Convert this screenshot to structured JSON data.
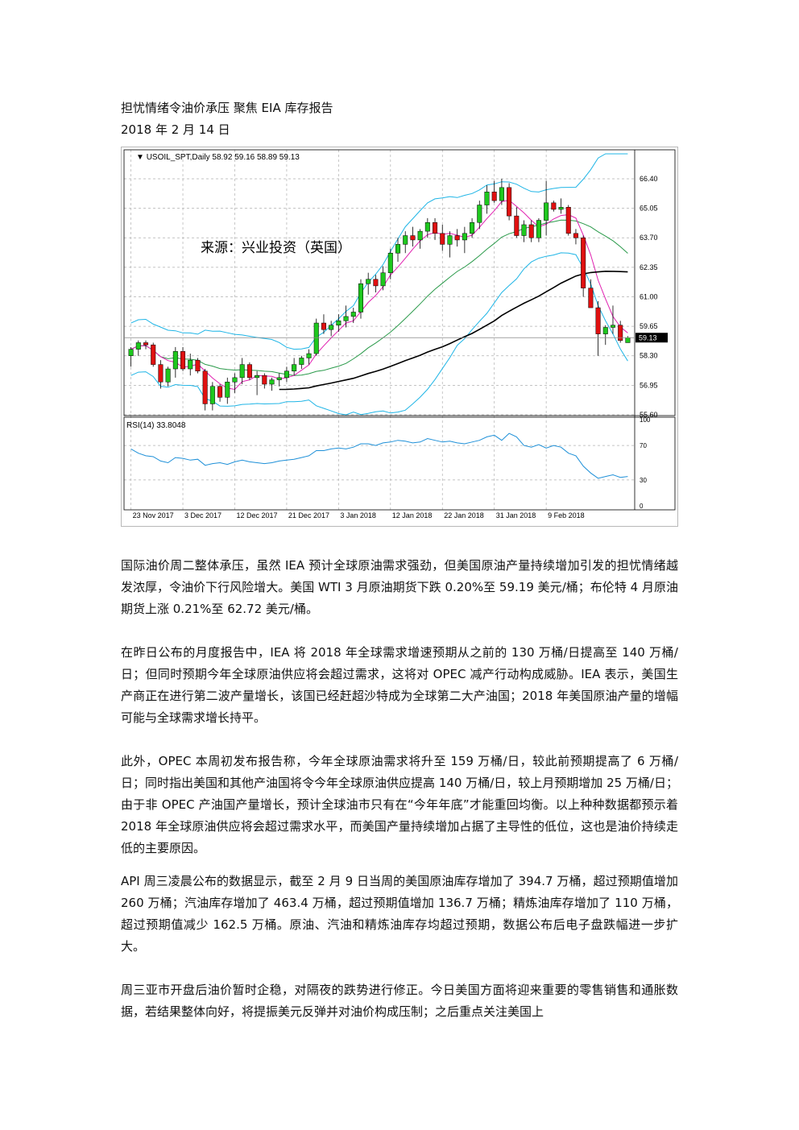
{
  "header": {
    "title": "担忧情绪令油价承压 聚焦 EIA 库存报告",
    "date": "2018 年 2 月 14 日"
  },
  "chart_data": {
    "type": "candlestick",
    "symbol_label": "USOIL_SPT,Daily",
    "ohlc_label": "58.92 59.16 58.89 59.13",
    "watermark": "来源：兴业投资（英国）",
    "price_ticks": [
      "66.40",
      "65.05",
      "63.70",
      "62.35",
      "61.00",
      "59.65",
      "58.30",
      "56.95",
      "55.60"
    ],
    "price_tick_values": [
      66.4,
      65.05,
      63.7,
      62.35,
      61.0,
      59.65,
      58.3,
      56.95,
      55.6
    ],
    "ylim": [
      55.6,
      67.1
    ],
    "last_price": "59.13",
    "last_price_value": 59.13,
    "date_labels": [
      "23 Nov 2017",
      "3 Dec 2017",
      "12 Dec 2017",
      "21 Dec 2017",
      "3 Jan 2018",
      "12 Jan 2018",
      "22 Jan 2018",
      "31 Jan 2018",
      "9 Feb 2018"
    ],
    "date_label_index": [
      0,
      7,
      14,
      21,
      28,
      35,
      42,
      49,
      56
    ],
    "candles": [
      [
        58.3,
        58.7,
        57.8,
        58.6
      ],
      [
        58.6,
        59.0,
        58.3,
        58.9
      ],
      [
        58.9,
        59.0,
        58.6,
        58.8
      ],
      [
        58.8,
        58.9,
        57.8,
        57.9
      ],
      [
        57.9,
        58.1,
        56.8,
        57.1
      ],
      [
        57.1,
        57.8,
        56.9,
        57.7
      ],
      [
        57.7,
        58.7,
        57.3,
        58.5
      ],
      [
        58.5,
        58.7,
        57.6,
        57.7
      ],
      [
        57.7,
        58.4,
        57.4,
        58.1
      ],
      [
        58.1,
        58.2,
        57.5,
        57.6
      ],
      [
        57.6,
        57.7,
        55.8,
        56.1
      ],
      [
        56.1,
        57.1,
        55.8,
        56.9
      ],
      [
        56.9,
        57.0,
        56.2,
        56.4
      ],
      [
        56.4,
        57.3,
        56.1,
        57.1
      ],
      [
        57.1,
        57.5,
        56.6,
        57.3
      ],
      [
        57.3,
        58.2,
        57.0,
        57.9
      ],
      [
        57.9,
        58.0,
        57.2,
        57.3
      ],
      [
        57.3,
        57.6,
        56.5,
        57.4
      ],
      [
        57.4,
        57.5,
        56.8,
        57.0
      ],
      [
        57.0,
        57.3,
        56.7,
        57.2
      ],
      [
        57.2,
        57.5,
        56.9,
        57.3
      ],
      [
        57.3,
        57.8,
        57.1,
        57.6
      ],
      [
        57.6,
        58.2,
        57.4,
        57.9
      ],
      [
        57.9,
        58.3,
        57.7,
        58.2
      ],
      [
        58.2,
        58.6,
        57.9,
        58.4
      ],
      [
        58.4,
        60.0,
        58.3,
        59.8
      ],
      [
        59.8,
        60.2,
        59.3,
        59.5
      ],
      [
        59.5,
        59.9,
        59.2,
        59.7
      ],
      [
        59.7,
        60.2,
        59.4,
        59.9
      ],
      [
        59.9,
        60.6,
        59.6,
        60.1
      ],
      [
        60.1,
        60.5,
        59.8,
        60.3
      ],
      [
        60.3,
        61.8,
        60.0,
        61.6
      ],
      [
        61.6,
        62.1,
        61.1,
        61.8
      ],
      [
        61.8,
        62.0,
        61.2,
        61.5
      ],
      [
        61.5,
        62.4,
        61.3,
        62.1
      ],
      [
        62.1,
        63.2,
        61.8,
        63.0
      ],
      [
        63.0,
        63.7,
        62.6,
        63.4
      ],
      [
        63.4,
        64.0,
        63.0,
        63.8
      ],
      [
        63.8,
        64.2,
        63.3,
        63.6
      ],
      [
        63.6,
        64.1,
        63.2,
        64.0
      ],
      [
        64.0,
        64.6,
        63.7,
        64.4
      ],
      [
        64.4,
        64.6,
        63.6,
        63.9
      ],
      [
        63.9,
        64.3,
        63.1,
        63.4
      ],
      [
        63.4,
        64.0,
        62.8,
        63.8
      ],
      [
        63.8,
        64.1,
        63.3,
        63.6
      ],
      [
        63.6,
        64.2,
        63.0,
        63.9
      ],
      [
        63.9,
        64.6,
        63.7,
        64.4
      ],
      [
        64.4,
        65.4,
        64.1,
        65.2
      ],
      [
        65.2,
        66.1,
        64.8,
        65.8
      ],
      [
        65.8,
        66.3,
        65.3,
        65.4
      ],
      [
        65.4,
        66.4,
        65.2,
        66.0
      ],
      [
        66.0,
        66.2,
        64.5,
        64.7
      ],
      [
        64.7,
        65.1,
        63.7,
        63.8
      ],
      [
        63.8,
        64.5,
        63.5,
        64.3
      ],
      [
        64.3,
        64.5,
        63.5,
        63.7
      ],
      [
        63.7,
        64.6,
        63.5,
        64.5
      ],
      [
        64.5,
        66.3,
        63.8,
        65.3
      ],
      [
        65.3,
        65.4,
        64.9,
        65.0
      ],
      [
        65.0,
        65.5,
        64.8,
        65.1
      ],
      [
        65.1,
        65.2,
        63.8,
        63.9
      ],
      [
        63.9,
        64.1,
        63.4,
        63.7
      ],
      [
        63.7,
        63.8,
        61.0,
        61.4
      ],
      [
        61.4,
        61.8,
        60.5,
        60.5
      ],
      [
        60.5,
        60.8,
        58.3,
        59.3
      ],
      [
        59.3,
        59.7,
        58.8,
        59.6
      ],
      [
        59.6,
        60.6,
        59.3,
        59.7
      ],
      [
        59.7,
        59.9,
        58.9,
        59.0
      ],
      [
        58.9,
        59.2,
        58.9,
        59.13
      ]
    ],
    "rsi_label": "RSI(14) 33.8048",
    "rsi_ticks": [
      "100",
      "70",
      "30",
      "0"
    ],
    "rsi_tick_values": [
      100,
      70,
      30,
      0
    ],
    "rsi": [
      66,
      61,
      58,
      57,
      52,
      50,
      56,
      55,
      53,
      54,
      47,
      49,
      50,
      48,
      51,
      53,
      51,
      50,
      49,
      50,
      52,
      53,
      54,
      56,
      58,
      64,
      64,
      66,
      67,
      66,
      68,
      72,
      72,
      70,
      73,
      74,
      76,
      75,
      73,
      74,
      78,
      76,
      74,
      75,
      73,
      72,
      74,
      76,
      80,
      82,
      76,
      84,
      80,
      70,
      68,
      71,
      67,
      70,
      68,
      61,
      58,
      46,
      38,
      32,
      34,
      36,
      33,
      34
    ]
  },
  "paragraphs": [
    "国际油价周二整体承压，虽然 IEA 预计全球原油需求强劲，但美国原油产量持续增加引发的担忧情绪越发浓厚，令油价下行风险增大。美国 WTI 3 月原油期货下跌 0.20%至 59.19 美元/桶；布伦特 4 月原油期货上涨 0.21%至 62.72 美元/桶。",
    "在昨日公布的月度报告中，IEA 将 2018 年全球需求增速预期从之前的 130 万桶/日提高至 140 万桶/日；但同时预期今年全球原油供应将会超过需求，这将对 OPEC 减产行动构成威胁。IEA 表示，美国生产商正在进行第二波产量增长，该国已经赶超沙特成为全球第二大产油国；2018 年美国原油产量的增幅可能与全球需求增长持平。",
    "此外，OPEC 本周初发布报告称，今年全球原油需求将升至 159 万桶/日，较此前预期提高了 6 万桶/日；同时指出美国和其他产油国将令今年全球原油供应提高 140 万桶/日，较上月预期增加 25 万桶/日；由于非 OPEC 产油国产量增长，预计全球油市只有在“今年年底”才能重回均衡。以上种种数据都预示着 2018 年全球原油供应将会超过需求水平，而美国产量持续增加占据了主导性的低位，这也是油价持续走低的主要原因。",
    "API 周三凌晨公布的数据显示，截至 2 月 9 日当周的美国原油库存增加了 394.7 万桶，超过预期值增加 260 万桶；汽油库存增加了 463.4 万桶，超过预期值增加 136.7 万桶；精炼油库存增加了 110 万桶，超过预期值减少 162.5 万桶。原油、汽油和精炼油库存均超过预期，数据公布后电子盘跌幅进一步扩大。",
    "周三亚市开盘后油价暂时企稳，对隔夜的跌势进行修正。今日美国方面将迎来重要的零售销售和通胀数据，若结果整体向好，将提振美元反弹并对油价构成压制；之后重点关注美国上"
  ]
}
